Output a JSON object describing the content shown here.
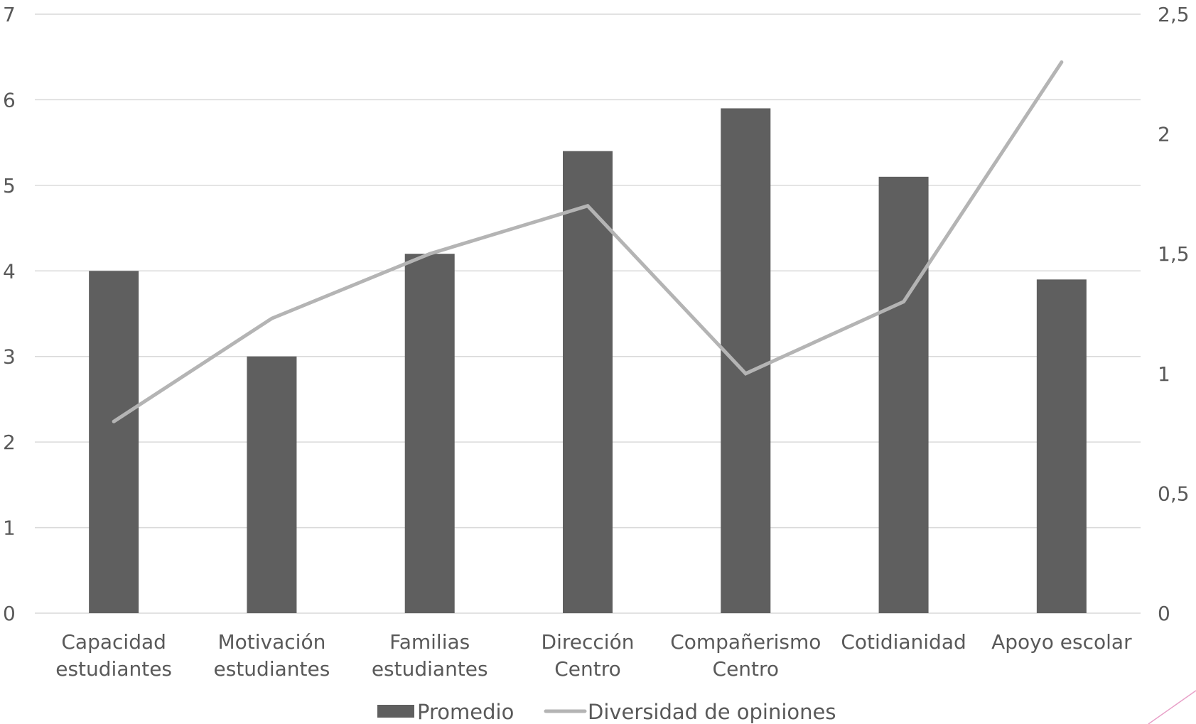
{
  "chart_data": {
    "type": "bar",
    "categories": [
      [
        "Capacidad",
        "estudiantes"
      ],
      [
        "Motivación",
        "estudiantes"
      ],
      [
        "Familias",
        "estudiantes"
      ],
      [
        "Dirección",
        "Centro"
      ],
      [
        "Compañerismo",
        "Centro"
      ],
      [
        "Cotidianidad"
      ],
      [
        "Apoyo escolar"
      ]
    ],
    "series": [
      {
        "name": "Promedio",
        "type": "bar",
        "axis": "left",
        "color": "#5f5f5f",
        "values": [
          4.0,
          3.0,
          4.2,
          5.4,
          5.9,
          5.1,
          3.9
        ]
      },
      {
        "name": "Diversidad de opiniones",
        "type": "line",
        "axis": "right",
        "color": "#b4b4b4",
        "values": [
          0.8,
          1.23,
          1.5,
          1.7,
          1.0,
          1.3,
          2.3
        ]
      }
    ],
    "y_left": {
      "ylim": [
        0,
        7
      ],
      "ticks": [
        "0",
        "1",
        "2",
        "3",
        "4",
        "5",
        "6",
        "7"
      ]
    },
    "y_right": {
      "ylim": [
        0,
        2.5
      ],
      "ticks": [
        "0",
        "0,5",
        "1",
        "1,5",
        "2",
        "2,5"
      ]
    },
    "grid": true,
    "legend": "bottom",
    "title": "",
    "xlabel": "",
    "ylabel": ""
  }
}
